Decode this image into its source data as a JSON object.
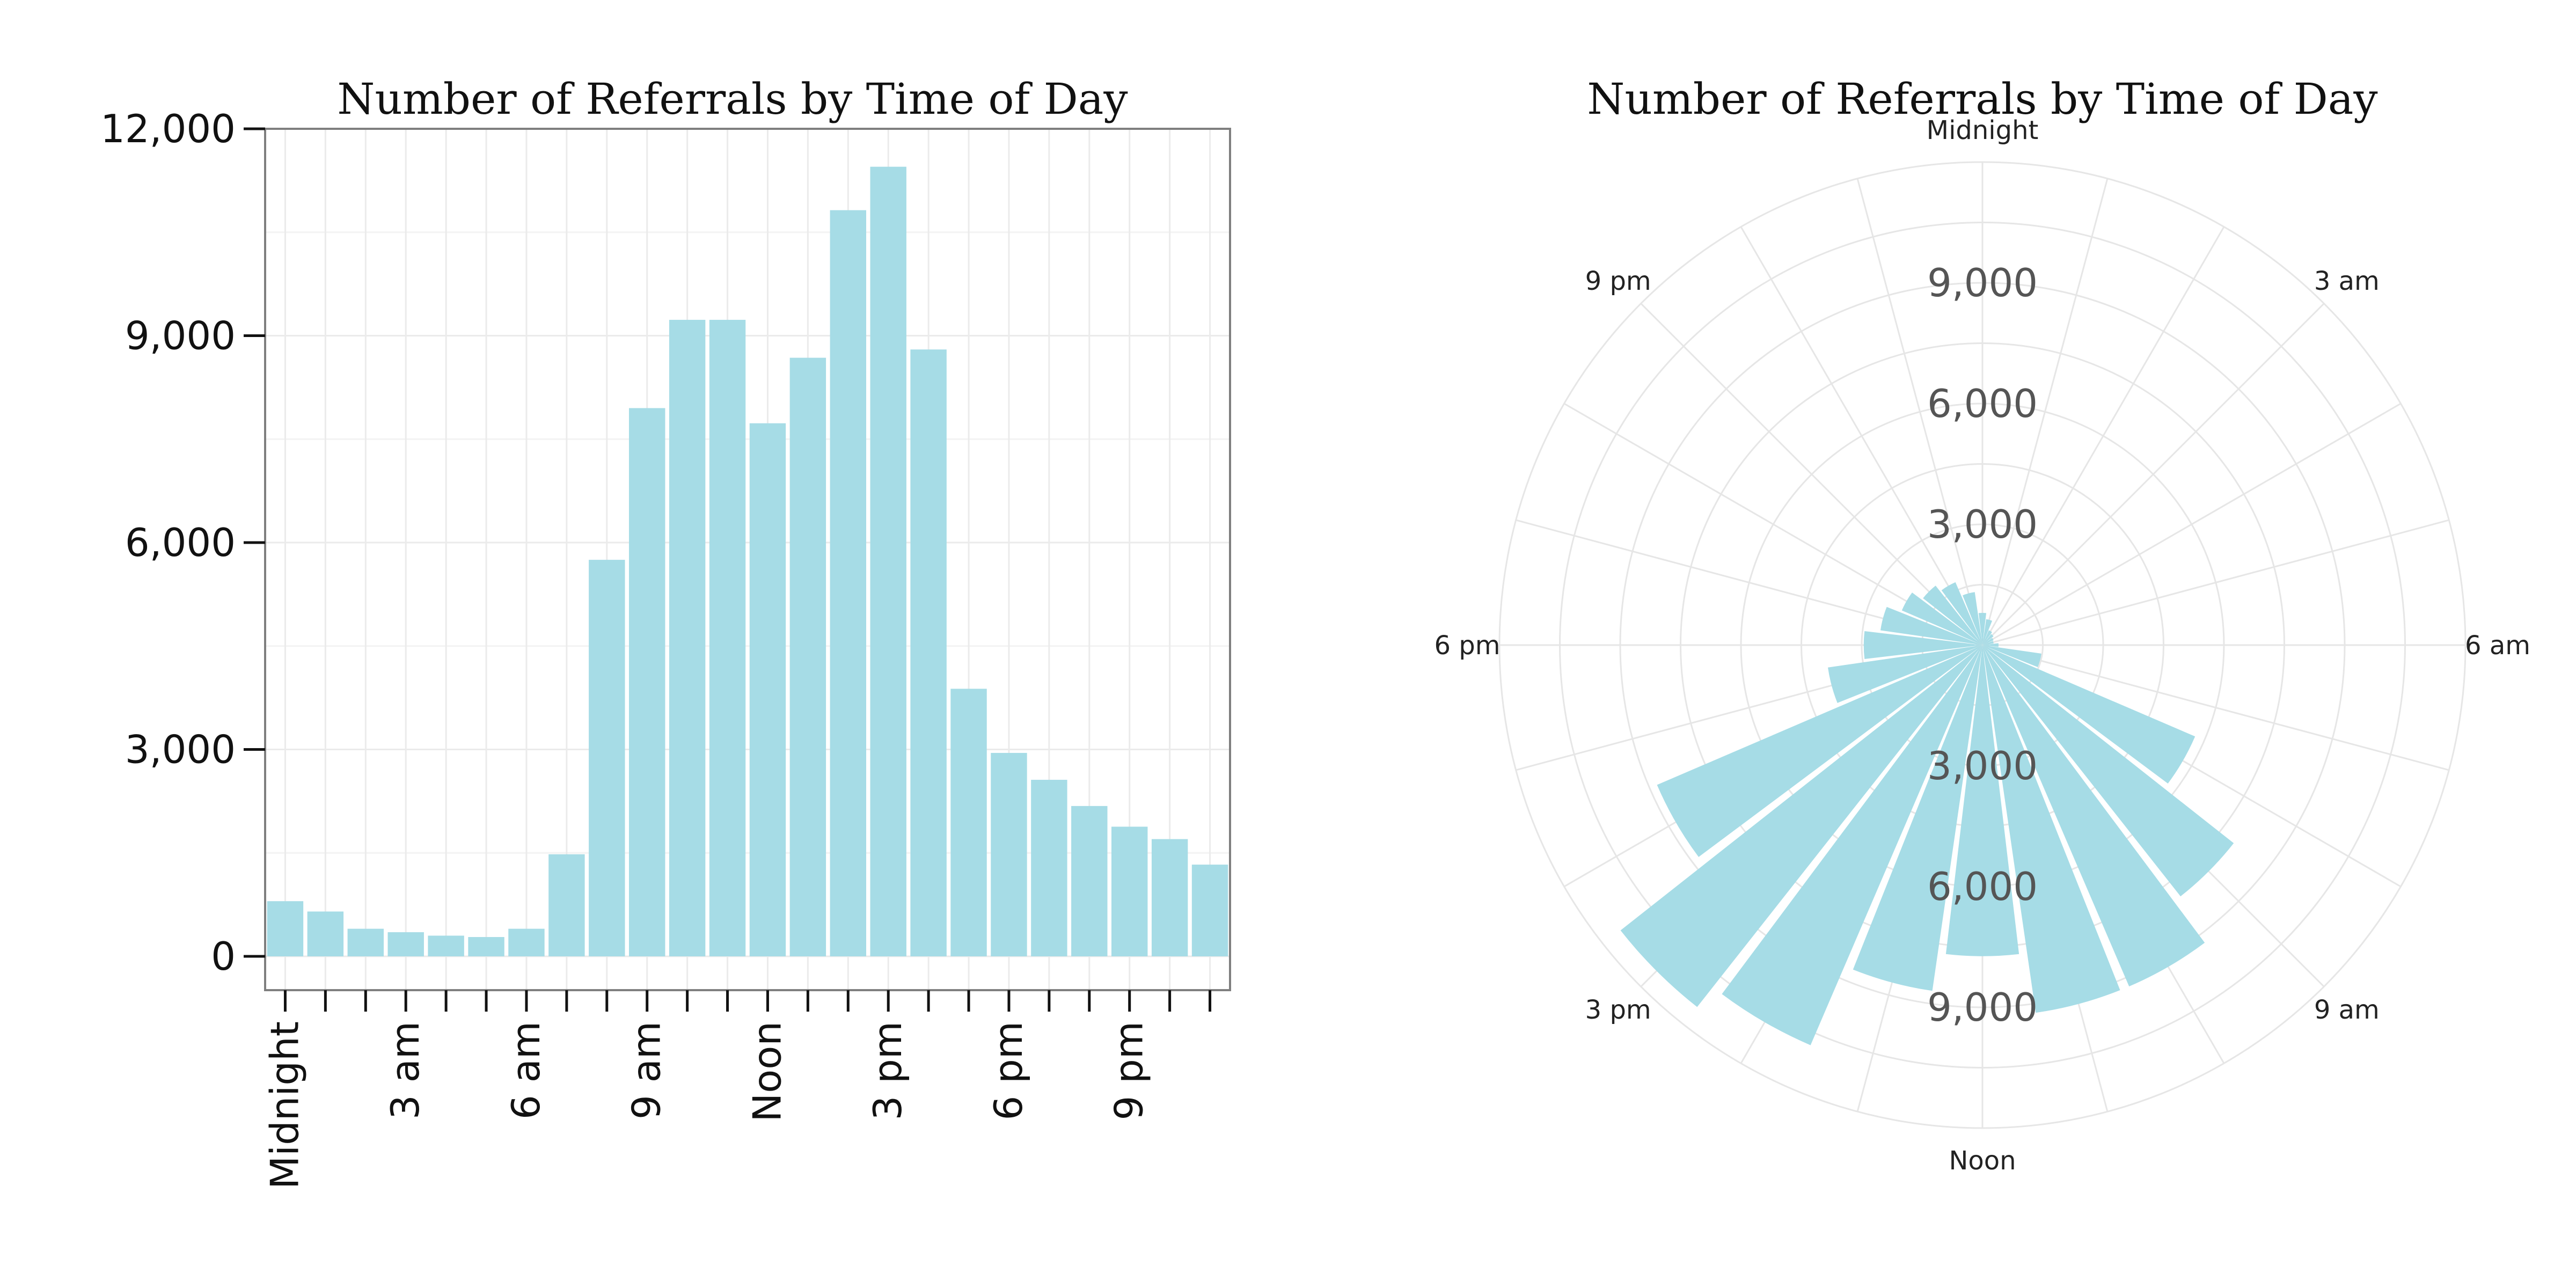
{
  "chart_data": [
    {
      "type": "bar",
      "title": "Number of Referrals by Time of Day",
      "xlabel": "",
      "ylabel": "",
      "hours": [
        0,
        1,
        2,
        3,
        4,
        5,
        6,
        7,
        8,
        9,
        10,
        11,
        12,
        13,
        14,
        15,
        16,
        17,
        18,
        19,
        20,
        21,
        22,
        23
      ],
      "values": [
        800,
        650,
        400,
        350,
        300,
        280,
        400,
        1480,
        5750,
        7950,
        9230,
        9230,
        7730,
        8680,
        10820,
        11450,
        8800,
        3880,
        2950,
        2560,
        2180,
        1880,
        1700,
        1330
      ],
      "x_tick_labels": [
        "Midnight",
        "3 am",
        "6 am",
        "9 am",
        "Noon",
        "3 pm",
        "6 pm",
        "9 pm"
      ],
      "x_tick_hours": [
        0,
        3,
        6,
        9,
        12,
        15,
        18,
        21
      ],
      "y_ticks": [
        0,
        3000,
        6000,
        9000,
        12000
      ],
      "y_tick_labels": [
        "0",
        "3,000",
        "6,000",
        "9,000",
        "12,000"
      ],
      "ylim": [
        0,
        12000
      ],
      "grid": true,
      "bar_color": "#a6dce6",
      "grid_color": "#ebebeb",
      "border_color": "#7f7f7f"
    },
    {
      "type": "bar",
      "coordinate_system": "polar",
      "title": "Number of Referrals by Time of Day",
      "hours": [
        0,
        1,
        2,
        3,
        4,
        5,
        6,
        7,
        8,
        9,
        10,
        11,
        12,
        13,
        14,
        15,
        16,
        17,
        18,
        19,
        20,
        21,
        22,
        23
      ],
      "values": [
        800,
        650,
        400,
        350,
        300,
        280,
        400,
        1480,
        5750,
        7950,
        9230,
        9230,
        7730,
        8680,
        10820,
        11450,
        8800,
        3880,
        2950,
        2560,
        2180,
        1880,
        1700,
        1330
      ],
      "radial_ticks": [
        3000,
        6000,
        9000
      ],
      "radial_tick_labels": [
        "3,000",
        "6,000",
        "9,000"
      ],
      "angle_labels": [
        "Midnight",
        "3 am",
        "6 am",
        "9 am",
        "Noon",
        "3 pm",
        "6 pm",
        "9 pm"
      ],
      "angle_label_hours": [
        0,
        3,
        6,
        9,
        12,
        15,
        18,
        21
      ],
      "rmax": 12000,
      "grid": true,
      "bar_color": "#a6dce6",
      "grid_color": "#e6e6e6"
    }
  ]
}
